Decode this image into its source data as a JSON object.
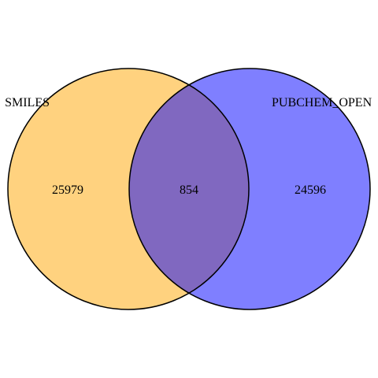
{
  "venn": {
    "sets": [
      {
        "label": "SMILES",
        "only_count": "25979",
        "color": "#FFD27F"
      },
      {
        "label": "PUBCHEM_OPEN",
        "only_count": "24596",
        "color": "#7F7FFF"
      }
    ],
    "intersection": {
      "count": "854",
      "color": "#8068C0"
    },
    "outline_color": "#000000"
  }
}
